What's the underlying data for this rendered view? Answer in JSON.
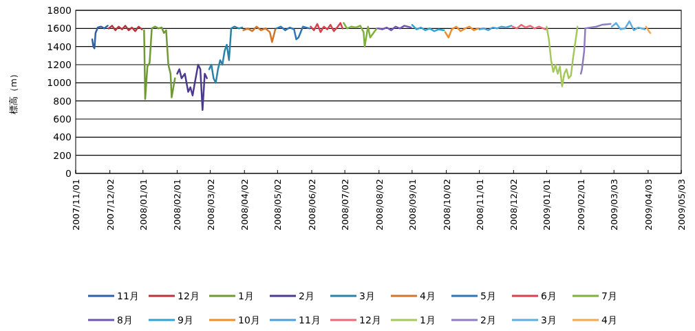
{
  "chart_data": {
    "type": "line",
    "ylabel": "標高（m）",
    "xlim": [
      "2007-11-01",
      "2009-05-03"
    ],
    "ylim": [
      0,
      1800
    ],
    "yticks": [
      0,
      200,
      400,
      600,
      800,
      1000,
      1200,
      1400,
      1600,
      1800
    ],
    "xticks": [
      {
        "value": "2007-11-01",
        "label": "2007/11/01"
      },
      {
        "value": "2007-12-02",
        "label": "2007/12/02"
      },
      {
        "value": "2008-01-01",
        "label": "2008/01/01"
      },
      {
        "value": "2008-02-01",
        "label": "2008/02/01"
      },
      {
        "value": "2008-03-02",
        "label": "2008/03/02"
      },
      {
        "value": "2008-04-02",
        "label": "2008/04/02"
      },
      {
        "value": "2008-05-02",
        "label": "2008/05/02"
      },
      {
        "value": "2008-06-02",
        "label": "2008/06/02"
      },
      {
        "value": "2008-07-02",
        "label": "2008/07/02"
      },
      {
        "value": "2008-08-02",
        "label": "2008/08/02"
      },
      {
        "value": "2008-09-01",
        "label": "2008/09/01"
      },
      {
        "value": "2008-10-02",
        "label": "2008/10/02"
      },
      {
        "value": "2008-11-01",
        "label": "2008/11/01"
      },
      {
        "value": "2008-12-02",
        "label": "2008/12/02"
      },
      {
        "value": "2009-01-01",
        "label": "2009/01/01"
      },
      {
        "value": "2009-02-01",
        "label": "2009/02/01"
      },
      {
        "value": "2009-03-03",
        "label": "2009/03/03"
      },
      {
        "value": "2009-04-03",
        "label": "2009/04/03"
      },
      {
        "value": "2009-05-03",
        "label": "2009/05/03"
      }
    ],
    "grid": "y",
    "legend": "bottom",
    "line_style": "solid",
    "series": [
      {
        "name": "11月",
        "color": "#2e5fa8",
        "x": [
          "2007-11-16",
          "2007-11-17",
          "2007-11-18",
          "2007-11-19",
          "2007-11-21",
          "2007-11-24",
          "2007-11-27",
          "2007-11-30"
        ],
        "values": [
          1480,
          1400,
          1380,
          1550,
          1610,
          1620,
          1600,
          1630
        ]
      },
      {
        "name": "12月",
        "color": "#b8333a",
        "x": [
          "2007-12-01",
          "2007-12-04",
          "2007-12-07",
          "2007-12-10",
          "2007-12-13",
          "2007-12-16",
          "2007-12-19",
          "2007-12-22",
          "2007-12-25",
          "2007-12-28",
          "2007-12-31"
        ],
        "values": [
          1600,
          1630,
          1580,
          1620,
          1590,
          1630,
          1580,
          1610,
          1570,
          1620,
          1590
        ]
      },
      {
        "name": "1月",
        "color": "#6f9a33",
        "x": [
          "2008-01-02",
          "2008-01-03",
          "2008-01-05",
          "2008-01-07",
          "2008-01-09",
          "2008-01-12",
          "2008-01-15",
          "2008-01-18",
          "2008-01-20",
          "2008-01-22",
          "2008-01-24",
          "2008-01-26",
          "2008-01-27",
          "2008-01-30"
        ],
        "values": [
          1580,
          820,
          1180,
          1220,
          1600,
          1620,
          1600,
          1610,
          1550,
          1580,
          1200,
          1100,
          840,
          1050
        ]
      },
      {
        "name": "2月",
        "color": "#4b3a8f",
        "x": [
          "2008-02-01",
          "2008-02-03",
          "2008-02-05",
          "2008-02-08",
          "2008-02-11",
          "2008-02-13",
          "2008-02-15",
          "2008-02-17",
          "2008-02-20",
          "2008-02-22",
          "2008-02-24",
          "2008-02-26",
          "2008-02-28"
        ],
        "values": [
          1100,
          1150,
          1050,
          1100,
          900,
          950,
          860,
          1000,
          1200,
          1150,
          700,
          1100,
          1050
        ]
      },
      {
        "name": "3月",
        "color": "#2b82a8",
        "x": [
          "2008-03-01",
          "2008-03-03",
          "2008-03-05",
          "2008-03-07",
          "2008-03-09",
          "2008-03-11",
          "2008-03-13",
          "2008-03-15",
          "2008-03-17",
          "2008-03-19",
          "2008-03-21",
          "2008-03-24",
          "2008-03-28",
          "2008-03-31"
        ],
        "values": [
          1150,
          1200,
          1050,
          1000,
          1150,
          1250,
          1200,
          1350,
          1420,
          1250,
          1600,
          1620,
          1600,
          1610
        ]
      },
      {
        "name": "4月",
        "color": "#d2742a",
        "x": [
          "2008-04-01",
          "2008-04-05",
          "2008-04-09",
          "2008-04-13",
          "2008-04-17",
          "2008-04-21",
          "2008-04-25",
          "2008-04-27",
          "2008-04-30"
        ],
        "values": [
          1580,
          1600,
          1570,
          1620,
          1580,
          1600,
          1560,
          1450,
          1590
        ]
      },
      {
        "name": "5月",
        "color": "#2e75b6",
        "x": [
          "2008-05-01",
          "2008-05-05",
          "2008-05-09",
          "2008-05-13",
          "2008-05-17",
          "2008-05-19",
          "2008-05-21",
          "2008-05-25",
          "2008-05-31"
        ],
        "values": [
          1600,
          1620,
          1580,
          1610,
          1590,
          1480,
          1500,
          1620,
          1600
        ]
      },
      {
        "name": "6月",
        "color": "#d9404e",
        "x": [
          "2008-06-01",
          "2008-06-04",
          "2008-06-07",
          "2008-06-10",
          "2008-06-13",
          "2008-06-16",
          "2008-06-19",
          "2008-06-22",
          "2008-06-25",
          "2008-06-28",
          "2008-06-30"
        ],
        "values": [
          1620,
          1580,
          1650,
          1560,
          1620,
          1590,
          1640,
          1570,
          1610,
          1660,
          1600
        ]
      },
      {
        "name": "7月",
        "color": "#7fb03a",
        "x": [
          "2008-07-01",
          "2008-07-04",
          "2008-07-08",
          "2008-07-12",
          "2008-07-16",
          "2008-07-19",
          "2008-07-20",
          "2008-07-23",
          "2008-07-25",
          "2008-07-31"
        ],
        "values": [
          1660,
          1600,
          1620,
          1610,
          1630,
          1560,
          1400,
          1620,
          1500,
          1600
        ]
      },
      {
        "name": "8月",
        "color": "#6e56b8",
        "x": [
          "2008-08-01",
          "2008-08-05",
          "2008-08-09",
          "2008-08-13",
          "2008-08-17",
          "2008-08-21",
          "2008-08-25",
          "2008-08-31"
        ],
        "values": [
          1600,
          1590,
          1610,
          1580,
          1620,
          1600,
          1630,
          1610
        ]
      },
      {
        "name": "9月",
        "color": "#2ea3d6",
        "x": [
          "2008-09-01",
          "2008-09-05",
          "2008-09-09",
          "2008-09-13",
          "2008-09-17",
          "2008-09-21",
          "2008-09-25",
          "2008-09-30"
        ],
        "values": [
          1640,
          1590,
          1610,
          1580,
          1600,
          1570,
          1590,
          1580
        ]
      },
      {
        "name": "10月",
        "color": "#f08c2a",
        "x": [
          "2008-10-01",
          "2008-10-04",
          "2008-10-07",
          "2008-10-11",
          "2008-10-15",
          "2008-10-19",
          "2008-10-23",
          "2008-10-27",
          "2008-10-31"
        ],
        "values": [
          1560,
          1500,
          1590,
          1620,
          1570,
          1600,
          1620,
          1580,
          1600
        ]
      },
      {
        "name": "11月",
        "color": "#4a9fd8",
        "x": [
          "2008-11-01",
          "2008-11-05",
          "2008-11-09",
          "2008-11-13",
          "2008-11-17",
          "2008-11-21",
          "2008-11-25",
          "2008-11-30"
        ],
        "values": [
          1590,
          1600,
          1580,
          1610,
          1600,
          1620,
          1610,
          1630
        ]
      },
      {
        "name": "12月",
        "color": "#ea6877",
        "x": [
          "2008-12-01",
          "2008-12-05",
          "2008-12-09",
          "2008-12-13",
          "2008-12-17",
          "2008-12-21",
          "2008-12-25",
          "2008-12-31"
        ],
        "values": [
          1620,
          1600,
          1640,
          1610,
          1630,
          1600,
          1620,
          1590
        ]
      },
      {
        "name": "1月",
        "color": "#a5c85a",
        "x": [
          "2009-01-01",
          "2009-01-03",
          "2009-01-05",
          "2009-01-07",
          "2009-01-09",
          "2009-01-11",
          "2009-01-13",
          "2009-01-15",
          "2009-01-17",
          "2009-01-19",
          "2009-01-21",
          "2009-01-23",
          "2009-01-25",
          "2009-01-27",
          "2009-01-29"
        ],
        "values": [
          1620,
          1480,
          1250,
          1120,
          1200,
          1100,
          1180,
          960,
          1100,
          1150,
          1050,
          1080,
          1280,
          1450,
          1620
        ]
      },
      {
        "name": "2月",
        "color": "#8e7cc3",
        "x": [
          "2009-02-01",
          "2009-02-02",
          "2009-02-04",
          "2009-02-05",
          "2009-02-10",
          "2009-02-15",
          "2009-02-20",
          "2009-02-28"
        ],
        "values": [
          1100,
          1150,
          1350,
          1600,
          1610,
          1620,
          1640,
          1650
        ]
      },
      {
        "name": "3月",
        "color": "#5aaee0",
        "x": [
          "2009-03-01",
          "2009-03-05",
          "2009-03-09",
          "2009-03-13",
          "2009-03-17",
          "2009-03-21",
          "2009-03-25",
          "2009-03-31"
        ],
        "values": [
          1620,
          1660,
          1590,
          1600,
          1680,
          1580,
          1610,
          1590
        ]
      },
      {
        "name": "4月",
        "color": "#f5a54a",
        "x": [
          "2009-04-01",
          "2009-04-03",
          "2009-04-05"
        ],
        "values": [
          1620,
          1580,
          1550
        ]
      }
    ]
  }
}
